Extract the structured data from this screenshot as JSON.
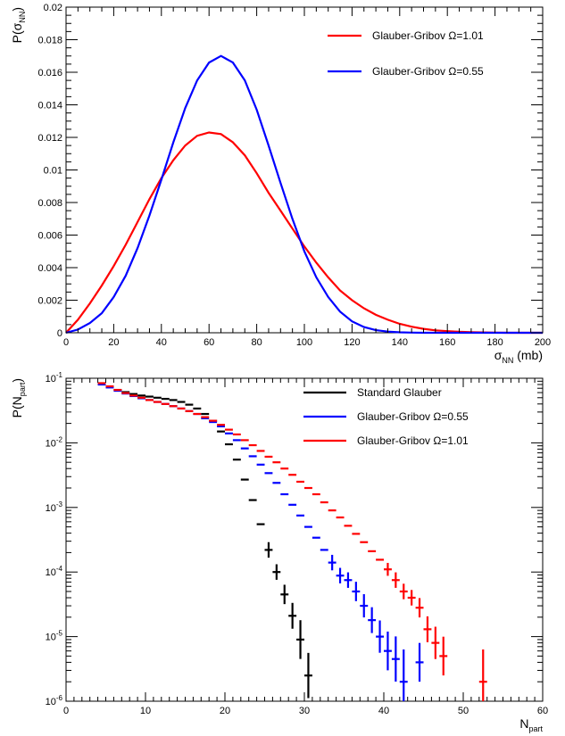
{
  "chart_data": [
    {
      "type": "line",
      "xlabel": {
        "main": "σ",
        "sub": "NN",
        "tail": " (mb)"
      },
      "ylabel": {
        "main": "P(σ",
        "sub": "NN",
        "tail": ")"
      },
      "xlim": [
        0,
        200
      ],
      "ylim": [
        0,
        0.02
      ],
      "xticks": [
        0,
        20,
        40,
        60,
        80,
        100,
        120,
        140,
        160,
        180,
        200
      ],
      "yticks": [
        0,
        0.002,
        0.004,
        0.006,
        0.008,
        0.01,
        0.012,
        0.014,
        0.016,
        0.018,
        0.02
      ],
      "ytick_labels": [
        "0",
        "0.002",
        "0.004",
        "0.006",
        "0.008",
        "0.01",
        "0.012",
        "0.014",
        "0.016",
        "0.018",
        "0.02"
      ],
      "grid": false,
      "legend_position": "top-right",
      "series": [
        {
          "name": "Glauber-Gribov Ω=1.01",
          "color": "#ff0000",
          "x": [
            0,
            5,
            10,
            15,
            20,
            25,
            30,
            35,
            40,
            45,
            50,
            55,
            60,
            65,
            70,
            75,
            80,
            85,
            90,
            95,
            100,
            105,
            110,
            115,
            120,
            125,
            130,
            135,
            140,
            145,
            150,
            155,
            160,
            165,
            170,
            175,
            180,
            185,
            190,
            195,
            200
          ],
          "y": [
            0.0,
            0.0008,
            0.0018,
            0.0029,
            0.0041,
            0.0054,
            0.0068,
            0.0082,
            0.0095,
            0.0106,
            0.0115,
            0.0121,
            0.0123,
            0.0122,
            0.0117,
            0.0109,
            0.0098,
            0.0086,
            0.0075,
            0.0064,
            0.0053,
            0.0043,
            0.0034,
            0.0026,
            0.002,
            0.0015,
            0.0011,
            0.0008,
            0.00055,
            0.00037,
            0.00024,
            0.00015,
            0.0001,
            6e-05,
            4e-05,
            2e-05,
            1e-05,
            0.0,
            0.0,
            0.0,
            0.0
          ]
        },
        {
          "name": "Glauber-Gribov Ω=0.55",
          "color": "#0000ff",
          "x": [
            0,
            5,
            10,
            15,
            20,
            25,
            30,
            35,
            40,
            45,
            50,
            55,
            60,
            65,
            70,
            75,
            80,
            85,
            90,
            95,
            100,
            105,
            110,
            115,
            120,
            125,
            130,
            135,
            140,
            145,
            150,
            155,
            160,
            165,
            170,
            175,
            180,
            185,
            190,
            195,
            200
          ],
          "y": [
            0.0,
            0.0002,
            0.0006,
            0.0012,
            0.0022,
            0.0035,
            0.0052,
            0.0072,
            0.0094,
            0.0117,
            0.0138,
            0.0155,
            0.0166,
            0.017,
            0.0166,
            0.0155,
            0.0137,
            0.0115,
            0.0092,
            0.007,
            0.005,
            0.0034,
            0.0022,
            0.0013,
            0.0007,
            0.00035,
            0.00016,
            7e-05,
            3e-05,
            1e-05,
            0.0,
            0.0,
            0.0,
            0.0,
            0.0,
            0.0,
            0.0,
            0.0,
            0.0,
            0.0,
            0.0
          ]
        }
      ]
    },
    {
      "type": "scatter",
      "xlabel": {
        "main": "N",
        "sub": "part",
        "tail": ""
      },
      "ylabel": {
        "main": "P(N",
        "sub": "part",
        "tail": ")"
      },
      "xlim": [
        0,
        60
      ],
      "ylim": [
        1e-06,
        0.1
      ],
      "yscale": "log",
      "xticks": [
        0,
        10,
        20,
        30,
        40,
        50,
        60
      ],
      "yticks": [
        1e-06,
        1e-05,
        0.0001,
        0.001,
        0.01,
        0.1
      ],
      "ytick_labels": [
        {
          "base": "10",
          "exp": "-6"
        },
        {
          "base": "10",
          "exp": "-5"
        },
        {
          "base": "10",
          "exp": "-4"
        },
        {
          "base": "10",
          "exp": "-3"
        },
        {
          "base": "10",
          "exp": "-2"
        },
        {
          "base": "10",
          "exp": "-1"
        }
      ],
      "grid": false,
      "legend_position": "top-right",
      "series": [
        {
          "name": "Standard Glauber",
          "color": "#000000",
          "x": [
            4.5,
            5.5,
            6.5,
            7.5,
            8.5,
            9.5,
            10.5,
            11.5,
            12.5,
            13.5,
            14.5,
            15.5,
            16.5,
            17.5,
            18.5,
            19.5,
            20.5,
            21.5,
            22.5,
            23.5,
            24.5,
            25.5,
            26.5,
            27.5,
            28.5,
            29.5,
            30.5
          ],
          "y": [
            0.082,
            0.074,
            0.066,
            0.061,
            0.057,
            0.054,
            0.052,
            0.05,
            0.048,
            0.046,
            0.043,
            0.039,
            0.034,
            0.028,
            0.022,
            0.015,
            0.0095,
            0.0055,
            0.0027,
            0.0013,
            0.00055,
            0.00022,
            0.0001,
            4.5e-05,
            2.1e-05,
            9e-06,
            2.5e-06
          ],
          "err": [
            0,
            0,
            0,
            0,
            0,
            0,
            0,
            0,
            0,
            0,
            0,
            0,
            0,
            0,
            0,
            0,
            0,
            0,
            0,
            0,
            0,
            0.12,
            0.12,
            0.15,
            0.2,
            0.3,
            0.35
          ]
        },
        {
          "name": "Glauber-Gribov Ω=0.55",
          "color": "#0000ff",
          "x": [
            4.5,
            5.5,
            6.5,
            7.5,
            8.5,
            9.5,
            10.5,
            11.5,
            12.5,
            13.5,
            14.5,
            15.5,
            16.5,
            17.5,
            18.5,
            19.5,
            20.5,
            21.5,
            22.5,
            23.5,
            24.5,
            25.5,
            26.5,
            27.5,
            28.5,
            29.5,
            30.5,
            31.5,
            32.5,
            33.5,
            34.5,
            35.5,
            36.5,
            37.5,
            38.5,
            39.5,
            40.5,
            41.5,
            42.5,
            44.5
          ],
          "y": [
            0.08,
            0.072,
            0.064,
            0.058,
            0.053,
            0.049,
            0.046,
            0.043,
            0.04,
            0.037,
            0.034,
            0.031,
            0.028,
            0.024,
            0.021,
            0.018,
            0.014,
            0.011,
            0.0082,
            0.0062,
            0.0046,
            0.0034,
            0.0024,
            0.0016,
            0.0011,
            0.00075,
            0.0005,
            0.00034,
            0.00022,
            0.00014,
            8.8e-05,
            7.5e-05,
            5e-05,
            3e-05,
            1.8e-05,
            1e-05,
            6e-06,
            4.5e-06,
            2e-06,
            4e-06
          ],
          "err": [
            0,
            0,
            0,
            0,
            0,
            0,
            0,
            0,
            0,
            0,
            0,
            0,
            0,
            0,
            0,
            0,
            0,
            0,
            0,
            0,
            0,
            0,
            0,
            0,
            0,
            0,
            0,
            0,
            0,
            0.12,
            0.12,
            0.12,
            0.15,
            0.18,
            0.2,
            0.25,
            0.3,
            0.35,
            0.5,
            0.3
          ]
        },
        {
          "name": "Glauber-Gribov Ω=1.01",
          "color": "#ff0000",
          "x": [
            4.5,
            5.5,
            6.5,
            7.5,
            8.5,
            9.5,
            10.5,
            11.5,
            12.5,
            13.5,
            14.5,
            15.5,
            16.5,
            17.5,
            18.5,
            19.5,
            20.5,
            21.5,
            22.5,
            23.5,
            24.5,
            25.5,
            26.5,
            27.5,
            28.5,
            29.5,
            30.5,
            31.5,
            32.5,
            33.5,
            34.5,
            35.5,
            36.5,
            37.5,
            38.5,
            39.5,
            40.5,
            41.5,
            42.5,
            43.5,
            44.5,
            45.5,
            46.5,
            47.5,
            52.5
          ],
          "y": [
            0.084,
            0.075,
            0.066,
            0.059,
            0.054,
            0.05,
            0.046,
            0.043,
            0.04,
            0.037,
            0.034,
            0.031,
            0.028,
            0.025,
            0.022,
            0.019,
            0.016,
            0.0135,
            0.011,
            0.0092,
            0.0075,
            0.0061,
            0.005,
            0.004,
            0.0032,
            0.0025,
            0.002,
            0.0016,
            0.0012,
            0.0009,
            0.0007,
            0.00052,
            0.00039,
            0.00029,
            0.00021,
            0.000155,
            0.00011,
            7.5e-05,
            5e-05,
            4e-05,
            2.8e-05,
            1.3e-05,
            8e-06,
            5e-06,
            2e-06
          ],
          "err": [
            0,
            0,
            0,
            0,
            0,
            0,
            0,
            0,
            0,
            0,
            0,
            0,
            0,
            0,
            0,
            0,
            0,
            0,
            0,
            0,
            0,
            0,
            0,
            0,
            0,
            0,
            0,
            0,
            0,
            0,
            0,
            0,
            0,
            0,
            0,
            0,
            0.1,
            0.12,
            0.12,
            0.12,
            0.15,
            0.2,
            0.25,
            0.3,
            0.5
          ]
        }
      ]
    }
  ]
}
